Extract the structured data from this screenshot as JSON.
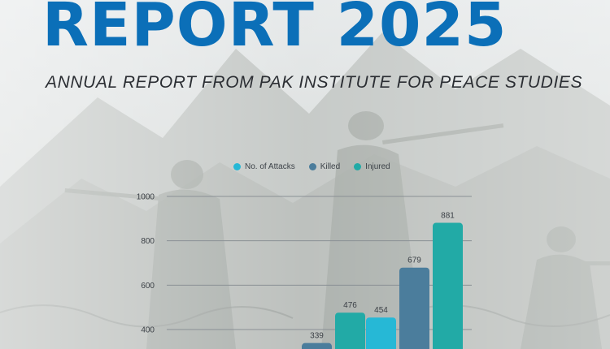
{
  "header": {
    "title": "REPORT 2025",
    "subtitle": "ANNUAL REPORT FROM PAK INSTITUTE FOR PEACE STUDIES"
  },
  "colors": {
    "title": "#0b6fb8",
    "attacks": "#26b8d6",
    "killed": "#4b7d9c",
    "injured": "#22aaa6"
  },
  "chart_data": {
    "type": "bar",
    "categories": [
      "",
      "",
      ""
    ],
    "series": [
      {
        "name": "No. of Attacks",
        "values": [
          null,
          null,
          454
        ]
      },
      {
        "name": "Killed",
        "values": [
          null,
          339,
          679
        ]
      },
      {
        "name": "Injured",
        "values": [
          null,
          476,
          881
        ]
      }
    ],
    "yticks": [
      400,
      600,
      800,
      1000
    ],
    "ylim": [
      0,
      1000
    ],
    "grid": true,
    "legend_position": "top"
  }
}
